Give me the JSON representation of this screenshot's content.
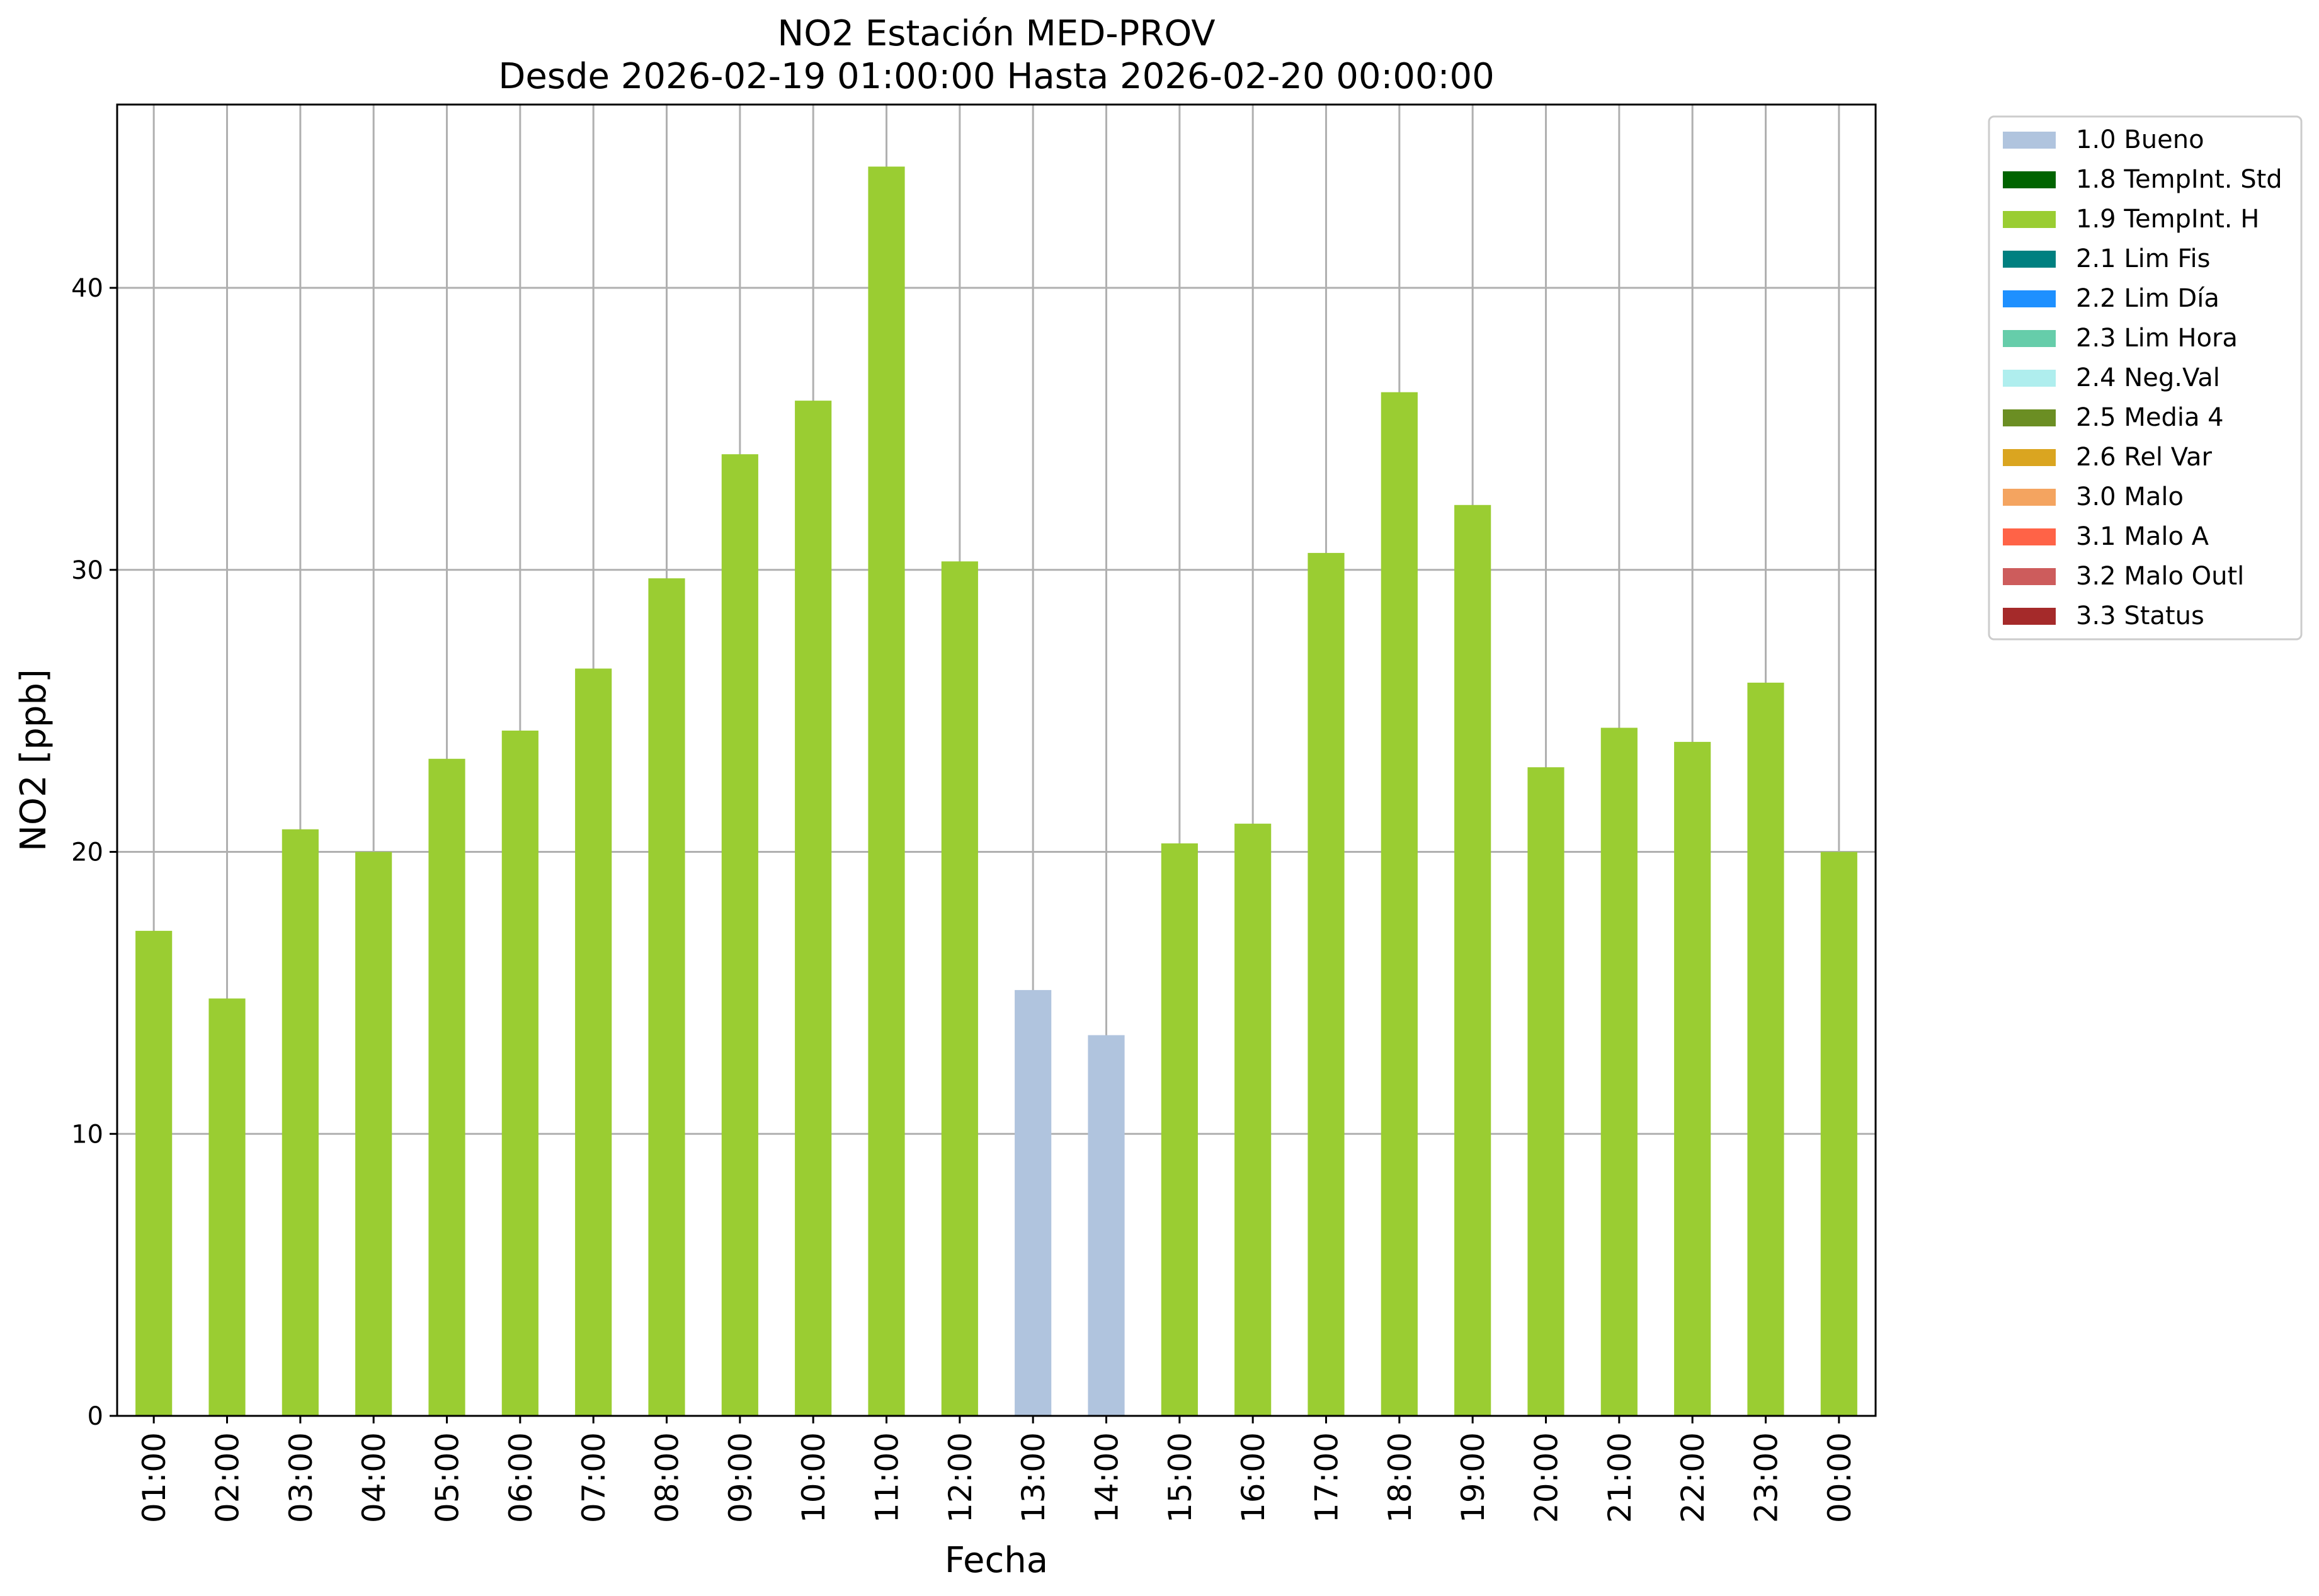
{
  "chart_data": {
    "type": "bar",
    "title": "NO2 Estación MED-PROV",
    "subtitle": "Desde 2026-02-19 01:00:00 Hasta 2026-02-20 00:00:00",
    "xlabel": "Fecha",
    "ylabel": "NO2 [ppb]",
    "ylim": [
      0,
      46.5
    ],
    "yticks": [
      0,
      10,
      20,
      30,
      40
    ],
    "grid": true,
    "legend_position": "outside right, top",
    "categories": [
      "01:00",
      "02:00",
      "03:00",
      "04:00",
      "05:00",
      "06:00",
      "07:00",
      "08:00",
      "09:00",
      "10:00",
      "11:00",
      "12:00",
      "13:00",
      "14:00",
      "15:00",
      "16:00",
      "17:00",
      "18:00",
      "19:00",
      "20:00",
      "21:00",
      "22:00",
      "23:00",
      "00:00"
    ],
    "values": [
      17.2,
      14.8,
      20.8,
      20.0,
      23.3,
      24.3,
      26.5,
      29.7,
      34.1,
      36.0,
      44.3,
      30.3,
      15.1,
      13.5,
      20.3,
      21.0,
      30.6,
      36.3,
      32.3,
      23.0,
      24.4,
      23.9,
      26.0,
      20.0
    ],
    "flags": [
      "1.9 TempInt. H",
      "1.9 TempInt. H",
      "1.9 TempInt. H",
      "1.9 TempInt. H",
      "1.9 TempInt. H",
      "1.9 TempInt. H",
      "1.9 TempInt. H",
      "1.9 TempInt. H",
      "1.9 TempInt. H",
      "1.9 TempInt. H",
      "1.9 TempInt. H",
      "1.9 TempInt. H",
      "1.0 Bueno",
      "1.0 Bueno",
      "1.9 TempInt. H",
      "1.9 TempInt. H",
      "1.9 TempInt. H",
      "1.9 TempInt. H",
      "1.9 TempInt. H",
      "1.9 TempInt. H",
      "1.9 TempInt. H",
      "1.9 TempInt. H",
      "1.9 TempInt. H",
      "1.9 TempInt. H"
    ],
    "legend": [
      {
        "label": "1.0 Bueno",
        "color": "#b0c4de"
      },
      {
        "label": "1.8 TempInt. Std",
        "color": "#006400"
      },
      {
        "label": "1.9 TempInt. H",
        "color": "#9acd32"
      },
      {
        "label": "2.1 Lim Fis",
        "color": "#008080"
      },
      {
        "label": "2.2 Lim Día",
        "color": "#1e90ff"
      },
      {
        "label": "2.3 Lim Hora",
        "color": "#66cdaa"
      },
      {
        "label": "2.4 Neg.Val",
        "color": "#afeeee"
      },
      {
        "label": "2.5 Media 4",
        "color": "#6b8e23"
      },
      {
        "label": "2.6 Rel Var",
        "color": "#daa520"
      },
      {
        "label": "3.0 Malo",
        "color": "#f4a460"
      },
      {
        "label": "3.1 Malo A",
        "color": "#ff6347"
      },
      {
        "label": "3.2 Malo Outl",
        "color": "#cd5c5c"
      },
      {
        "label": "3.3 Status",
        "color": "#a52a2a"
      }
    ]
  }
}
